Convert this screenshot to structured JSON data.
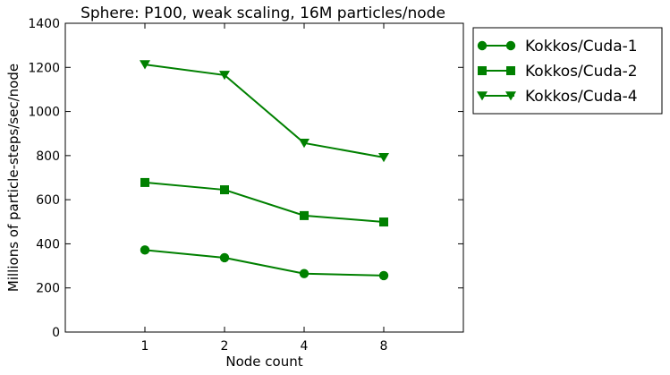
{
  "chart_data": {
    "type": "line",
    "title": "Sphere: P100, weak scaling, 16M particles/node",
    "xlabel": "Node count",
    "ylabel": "Millions of particle-steps/sec/node",
    "categories": [
      "1",
      "2",
      "4",
      "8"
    ],
    "ylim": [
      0,
      1400
    ],
    "yticks": [
      0,
      200,
      400,
      600,
      800,
      1000,
      1200,
      1400
    ],
    "grid": false,
    "legend_position": "outside-right",
    "series": [
      {
        "name": "Kokkos/Cuda-1",
        "marker": "circle",
        "color": "#008000",
        "values": [
          372,
          337,
          265,
          256
        ]
      },
      {
        "name": "Kokkos/Cuda-2",
        "marker": "square",
        "color": "#008000",
        "values": [
          678,
          645,
          528,
          499
        ]
      },
      {
        "name": "Kokkos/Cuda-4",
        "marker": "triangle-down",
        "color": "#008000",
        "values": [
          1213,
          1165,
          857,
          792
        ]
      }
    ]
  }
}
